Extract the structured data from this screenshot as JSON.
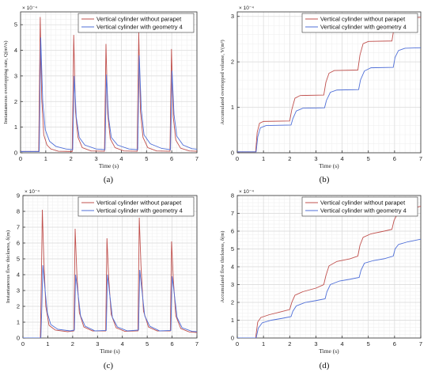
{
  "colors": {
    "red": "#c0504d",
    "blue": "#4f6fd8",
    "axis": "#333333",
    "grid": "#d9d9d9",
    "legend_border": "#333333"
  },
  "chart_data": [
    {
      "id": "a",
      "type": "line",
      "panel_label": "(a)",
      "xlabel": "Time (s)",
      "ylabel": "Instantaneous overtopping rate, Q(m³/s)",
      "exponent": "× 10⁻⁴",
      "xlim": [
        0,
        7
      ],
      "ylim": [
        0,
        5.5
      ],
      "xticks": [
        0,
        1,
        2,
        3,
        4,
        5,
        6,
        7
      ],
      "yticks": [
        0,
        1,
        2,
        3,
        4,
        5
      ],
      "grid": true,
      "minor_grid": true,
      "legend_position": "top-right",
      "series": [
        {
          "name": "Vertical cylinder without parapet",
          "color": "red",
          "points": [
            [
              0,
              0.05
            ],
            [
              0.72,
              0.05
            ],
            [
              0.78,
              5.3
            ],
            [
              0.84,
              2.1
            ],
            [
              0.92,
              0.7
            ],
            [
              1.05,
              0.3
            ],
            [
              1.2,
              0.15
            ],
            [
              1.5,
              0.06
            ],
            [
              2.05,
              0.05
            ],
            [
              2.11,
              4.6
            ],
            [
              2.18,
              1.6
            ],
            [
              2.28,
              0.6
            ],
            [
              2.45,
              0.2
            ],
            [
              2.8,
              0.07
            ],
            [
              3.33,
              0.06
            ],
            [
              3.39,
              4.25
            ],
            [
              3.46,
              1.5
            ],
            [
              3.56,
              0.55
            ],
            [
              3.75,
              0.2
            ],
            [
              4.1,
              0.07
            ],
            [
              4.63,
              0.06
            ],
            [
              4.69,
              4.7
            ],
            [
              4.76,
              1.6
            ],
            [
              4.86,
              0.6
            ],
            [
              5.05,
              0.2
            ],
            [
              5.4,
              0.07
            ],
            [
              5.93,
              0.06
            ],
            [
              5.99,
              4.05
            ],
            [
              6.06,
              1.4
            ],
            [
              6.16,
              0.5
            ],
            [
              6.35,
              0.18
            ],
            [
              6.7,
              0.07
            ],
            [
              7,
              0.06
            ]
          ]
        },
        {
          "name": "Vertical cylinder with geometry 4",
          "color": "blue",
          "points": [
            [
              0,
              0.05
            ],
            [
              0.74,
              0.05
            ],
            [
              0.8,
              4.5
            ],
            [
              0.88,
              2.0
            ],
            [
              0.98,
              0.9
            ],
            [
              1.15,
              0.45
            ],
            [
              1.4,
              0.25
            ],
            [
              1.8,
              0.15
            ],
            [
              2.07,
              0.12
            ],
            [
              2.13,
              3.0
            ],
            [
              2.21,
              1.4
            ],
            [
              2.33,
              0.6
            ],
            [
              2.55,
              0.3
            ],
            [
              3.0,
              0.15
            ],
            [
              3.35,
              0.12
            ],
            [
              3.41,
              3.05
            ],
            [
              3.49,
              1.4
            ],
            [
              3.6,
              0.6
            ],
            [
              3.85,
              0.3
            ],
            [
              4.3,
              0.15
            ],
            [
              4.65,
              0.12
            ],
            [
              4.71,
              3.8
            ],
            [
              4.79,
              1.7
            ],
            [
              4.9,
              0.7
            ],
            [
              5.15,
              0.35
            ],
            [
              5.6,
              0.17
            ],
            [
              5.95,
              0.12
            ],
            [
              6.01,
              3.2
            ],
            [
              6.09,
              1.5
            ],
            [
              6.2,
              0.65
            ],
            [
              6.45,
              0.3
            ],
            [
              6.8,
              0.16
            ],
            [
              7,
              0.14
            ]
          ]
        }
      ]
    },
    {
      "id": "b",
      "type": "line",
      "panel_label": "(b)",
      "xlabel": "Time (s)",
      "ylabel": "Accumulated overtopped volume, V(m³)",
      "exponent": "× 10⁻⁴",
      "xlim": [
        0,
        7
      ],
      "ylim": [
        0,
        3.1
      ],
      "xticks": [
        0,
        1,
        2,
        3,
        4,
        5,
        6,
        7
      ],
      "yticks": [
        0,
        1,
        2,
        3
      ],
      "grid": true,
      "minor_grid": true,
      "legend_position": "top-right",
      "series": [
        {
          "name": "Vertical cylinder without parapet",
          "color": "red",
          "points": [
            [
              0,
              0.02
            ],
            [
              0.7,
              0.02
            ],
            [
              0.76,
              0.45
            ],
            [
              0.85,
              0.65
            ],
            [
              1.0,
              0.69
            ],
            [
              2.0,
              0.7
            ],
            [
              2.08,
              0.95
            ],
            [
              2.2,
              1.2
            ],
            [
              2.4,
              1.26
            ],
            [
              3.3,
              1.27
            ],
            [
              3.38,
              1.55
            ],
            [
              3.5,
              1.75
            ],
            [
              3.7,
              1.81
            ],
            [
              4.6,
              1.82
            ],
            [
              4.68,
              2.15
            ],
            [
              4.8,
              2.4
            ],
            [
              5.0,
              2.45
            ],
            [
              5.9,
              2.46
            ],
            [
              5.98,
              2.75
            ],
            [
              6.1,
              2.93
            ],
            [
              6.3,
              2.97
            ],
            [
              7,
              2.98
            ]
          ]
        },
        {
          "name": "Vertical cylinder with geometry 4",
          "color": "blue",
          "points": [
            [
              0,
              0.02
            ],
            [
              0.72,
              0.02
            ],
            [
              0.78,
              0.35
            ],
            [
              0.88,
              0.55
            ],
            [
              1.1,
              0.6
            ],
            [
              2.05,
              0.61
            ],
            [
              2.12,
              0.75
            ],
            [
              2.25,
              0.92
            ],
            [
              2.5,
              0.98
            ],
            [
              3.33,
              0.99
            ],
            [
              3.4,
              1.15
            ],
            [
              3.55,
              1.33
            ],
            [
              3.8,
              1.38
            ],
            [
              4.63,
              1.39
            ],
            [
              4.7,
              1.6
            ],
            [
              4.85,
              1.8
            ],
            [
              5.1,
              1.87
            ],
            [
              5.95,
              1.88
            ],
            [
              6.02,
              2.1
            ],
            [
              6.15,
              2.25
            ],
            [
              6.4,
              2.3
            ],
            [
              7,
              2.31
            ]
          ]
        }
      ]
    },
    {
      "id": "c",
      "type": "line",
      "panel_label": "(c)",
      "xlabel": "Time (s)",
      "ylabel": "Instantaneous flow thickness, δ(m)",
      "exponent": "× 10⁻⁴",
      "xlim": [
        0,
        7
      ],
      "ylim": [
        0,
        9
      ],
      "xticks": [
        0,
        1,
        2,
        3,
        4,
        5,
        6,
        7
      ],
      "yticks": [
        0,
        1,
        2,
        3,
        4,
        5,
        6,
        7,
        8,
        9
      ],
      "grid": true,
      "minor_grid": true,
      "legend_position": "top-right",
      "series": [
        {
          "name": "Vertical cylinder without parapet",
          "color": "red",
          "points": [
            [
              0,
              0
            ],
            [
              0.7,
              0
            ],
            [
              0.74,
              3.5
            ],
            [
              0.78,
              8.1
            ],
            [
              0.84,
              5.0
            ],
            [
              0.92,
              2.0
            ],
            [
              1.05,
              0.8
            ],
            [
              1.3,
              0.5
            ],
            [
              1.8,
              0.4
            ],
            [
              2.05,
              0.45
            ],
            [
              2.1,
              6.9
            ],
            [
              2.17,
              4.0
            ],
            [
              2.27,
              1.6
            ],
            [
              2.45,
              0.7
            ],
            [
              2.8,
              0.45
            ],
            [
              3.33,
              0.45
            ],
            [
              3.38,
              6.3
            ],
            [
              3.45,
              3.8
            ],
            [
              3.55,
              1.5
            ],
            [
              3.75,
              0.65
            ],
            [
              4.1,
              0.42
            ],
            [
              4.63,
              0.45
            ],
            [
              4.68,
              7.6
            ],
            [
              4.75,
              4.5
            ],
            [
              4.85,
              1.7
            ],
            [
              5.05,
              0.7
            ],
            [
              5.4,
              0.45
            ],
            [
              5.93,
              0.45
            ],
            [
              5.98,
              6.1
            ],
            [
              6.05,
              3.7
            ],
            [
              6.15,
              1.4
            ],
            [
              6.35,
              0.6
            ],
            [
              6.7,
              0.38
            ],
            [
              7,
              0.35
            ]
          ]
        },
        {
          "name": "Vertical cylinder with geometry 4",
          "color": "blue",
          "points": [
            [
              0,
              0
            ],
            [
              0.72,
              0
            ],
            [
              0.76,
              2.0
            ],
            [
              0.8,
              4.6
            ],
            [
              0.88,
              3.2
            ],
            [
              0.98,
              1.6
            ],
            [
              1.12,
              0.85
            ],
            [
              1.4,
              0.55
            ],
            [
              1.9,
              0.45
            ],
            [
              2.07,
              0.5
            ],
            [
              2.12,
              4.0
            ],
            [
              2.2,
              3.0
            ],
            [
              2.32,
              1.4
            ],
            [
              2.5,
              0.75
            ],
            [
              2.9,
              0.45
            ],
            [
              3.35,
              0.48
            ],
            [
              3.4,
              4.0
            ],
            [
              3.48,
              2.9
            ],
            [
              3.6,
              1.3
            ],
            [
              3.8,
              0.7
            ],
            [
              4.2,
              0.45
            ],
            [
              4.65,
              0.5
            ],
            [
              4.7,
              4.3
            ],
            [
              4.78,
              3.1
            ],
            [
              4.9,
              1.4
            ],
            [
              5.1,
              0.75
            ],
            [
              5.5,
              0.45
            ],
            [
              5.95,
              0.48
            ],
            [
              6.0,
              3.9
            ],
            [
              6.08,
              2.9
            ],
            [
              6.2,
              1.3
            ],
            [
              6.4,
              0.65
            ],
            [
              6.8,
              0.42
            ],
            [
              7,
              0.4
            ]
          ]
        }
      ]
    },
    {
      "id": "d",
      "type": "line",
      "panel_label": "(d)",
      "xlabel": "Time (s)",
      "ylabel": "Accumulated flow thickness, δ(m)",
      "exponent": "× 10⁻⁴",
      "xlim": [
        0,
        7
      ],
      "ylim": [
        0,
        8
      ],
      "xticks": [
        0,
        1,
        2,
        3,
        4,
        5,
        6,
        7
      ],
      "yticks": [
        0,
        1,
        2,
        3,
        4,
        5,
        6,
        7,
        8
      ],
      "grid": true,
      "minor_grid": true,
      "legend_position": "top-right",
      "series": [
        {
          "name": "Vertical cylinder without parapet",
          "color": "red",
          "points": [
            [
              0,
              0
            ],
            [
              0.7,
              0
            ],
            [
              0.78,
              0.9
            ],
            [
              0.9,
              1.15
            ],
            [
              1.2,
              1.3
            ],
            [
              1.6,
              1.45
            ],
            [
              2.0,
              1.6
            ],
            [
              2.08,
              2.0
            ],
            [
              2.2,
              2.4
            ],
            [
              2.5,
              2.6
            ],
            [
              3.0,
              2.8
            ],
            [
              3.3,
              3.0
            ],
            [
              3.38,
              3.5
            ],
            [
              3.5,
              4.05
            ],
            [
              3.8,
              4.3
            ],
            [
              4.3,
              4.45
            ],
            [
              4.6,
              4.6
            ],
            [
              4.68,
              5.2
            ],
            [
              4.8,
              5.65
            ],
            [
              5.1,
              5.85
            ],
            [
              5.6,
              6.0
            ],
            [
              5.9,
              6.1
            ],
            [
              5.98,
              6.6
            ],
            [
              6.1,
              6.95
            ],
            [
              6.5,
              7.2
            ],
            [
              7,
              7.4
            ]
          ]
        },
        {
          "name": "Vertical cylinder with geometry 4",
          "color": "blue",
          "points": [
            [
              0,
              0
            ],
            [
              0.72,
              0
            ],
            [
              0.8,
              0.55
            ],
            [
              0.95,
              0.85
            ],
            [
              1.3,
              1.0
            ],
            [
              1.7,
              1.1
            ],
            [
              2.05,
              1.2
            ],
            [
              2.12,
              1.5
            ],
            [
              2.25,
              1.8
            ],
            [
              2.6,
              2.0
            ],
            [
              3.0,
              2.1
            ],
            [
              3.35,
              2.2
            ],
            [
              3.42,
              2.6
            ],
            [
              3.55,
              3.0
            ],
            [
              3.9,
              3.2
            ],
            [
              4.3,
              3.3
            ],
            [
              4.65,
              3.4
            ],
            [
              4.72,
              3.8
            ],
            [
              4.85,
              4.2
            ],
            [
              5.2,
              4.35
            ],
            [
              5.6,
              4.45
            ],
            [
              5.95,
              4.6
            ],
            [
              6.02,
              5.0
            ],
            [
              6.15,
              5.25
            ],
            [
              6.5,
              5.4
            ],
            [
              7,
              5.55
            ]
          ]
        }
      ]
    }
  ]
}
